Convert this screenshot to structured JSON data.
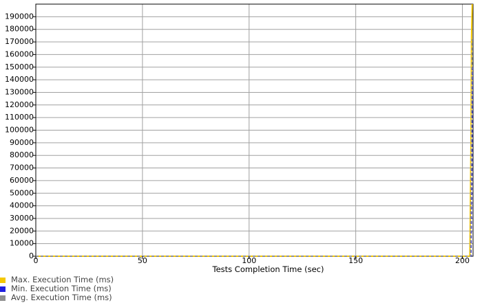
{
  "chart_data": {
    "type": "line",
    "xlabel": "Tests Completion Time (sec)",
    "ylabel": "",
    "xlim": [
      0,
      205
    ],
    "ylim": [
      0,
      200000
    ],
    "x_ticks": [
      0,
      50,
      100,
      150,
      200
    ],
    "y_ticks": [
      0,
      10000,
      20000,
      30000,
      40000,
      50000,
      60000,
      70000,
      80000,
      90000,
      100000,
      110000,
      120000,
      130000,
      140000,
      150000,
      160000,
      170000,
      180000,
      190000
    ],
    "grid": true,
    "legend_position": "bottom-left",
    "series": [
      {
        "name": "Max. Execution Time (ms)",
        "color": "#f5c800",
        "x": [
          0,
          203.5,
          204.0,
          204.3,
          204.6
        ],
        "y": [
          0,
          0,
          86000,
          174000,
          200000
        ]
      },
      {
        "name": "Min. Execution Time (ms)",
        "color": "#2020e0",
        "x": [
          0,
          204.0,
          204.4,
          204.7
        ],
        "y": [
          0,
          0,
          60000,
          150000
        ]
      },
      {
        "name": "Avg. Execution Time (ms)",
        "color": "#909090",
        "x": [
          0,
          203.8,
          204.2,
          204.6
        ],
        "y": [
          0,
          0,
          85000,
          172000
        ]
      }
    ]
  }
}
